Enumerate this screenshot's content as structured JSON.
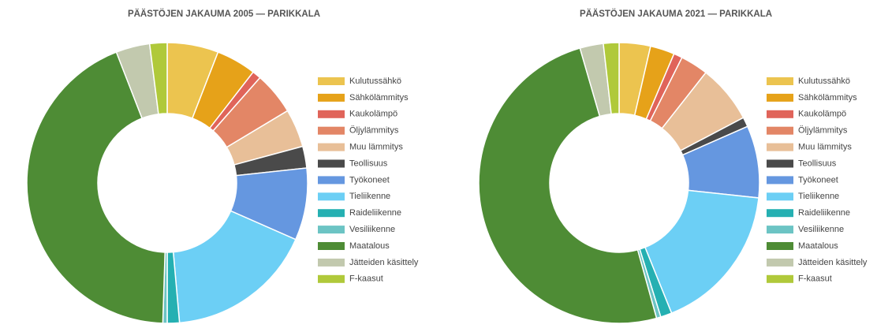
{
  "chart_data": [
    {
      "type": "donut",
      "title": "PÄÄSTÖJEN JAKAUMA 2005 — PARIKKALA",
      "categories": [
        "Kulutussähkö",
        "Sähkölämmitys",
        "Kaukolämpö",
        "Öljylämmitys",
        "Muu lämmitys",
        "Teollisuus",
        "Työkoneet",
        "Tieliikenne",
        "Raideliikenne",
        "Vesiliikenne",
        "Maatalous",
        "Jätteiden käsittely",
        "F-kaasut"
      ],
      "values": [
        5.9,
        4.6,
        1,
        4.9,
        4.4,
        2.5,
        8.3,
        17,
        1.4,
        0.5,
        43.6,
        3.9,
        2
      ],
      "colors": [
        "#ecc44f",
        "#e6a219",
        "#e0645a",
        "#e38666",
        "#e8bf98",
        "#4a4a4a",
        "#6597e0",
        "#6ccff5",
        "#25b0b2",
        "#6cc4c4",
        "#4e8c35",
        "#c2c9ae",
        "#b0c93a"
      ],
      "legend": "right"
    },
    {
      "type": "donut",
      "title": "PÄÄSTÖJEN JAKAUMA 2021 — PARIKKALA",
      "categories": [
        "Kulutussähkö",
        "Sähkölämmitys",
        "Kaukolämpö",
        "Öljylämmitys",
        "Muu lämmitys",
        "Teollisuus",
        "Työkoneet",
        "Tieliikenne",
        "Raideliikenne",
        "Vesiliikenne",
        "Maatalous",
        "Jätteiden käsittely",
        "F-kaasut"
      ],
      "values": [
        3.6,
        2.8,
        1,
        3.2,
        6.7,
        1.1,
        8.3,
        17.2,
        1.3,
        0.5,
        49.8,
        2.7,
        1.8
      ],
      "colors": [
        "#ecc44f",
        "#e6a219",
        "#e0645a",
        "#e38666",
        "#e8bf98",
        "#4a4a4a",
        "#6597e0",
        "#6ccff5",
        "#25b0b2",
        "#6cc4c4",
        "#4e8c35",
        "#c2c9ae",
        "#b0c93a"
      ],
      "legend": "right"
    }
  ]
}
